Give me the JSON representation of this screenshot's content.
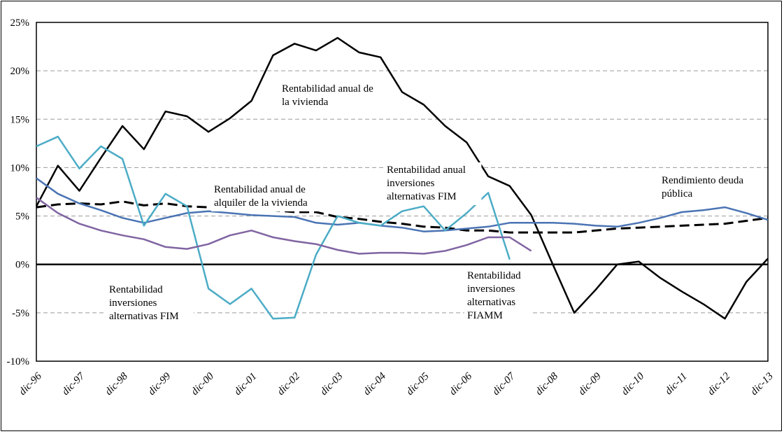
{
  "chart_data": {
    "type": "line",
    "title": "",
    "xlabel": "",
    "ylabel": "",
    "ylim": [
      -10,
      25
    ],
    "y_ticks": [
      "25%",
      "20%",
      "15%",
      "10%",
      "5%",
      "0%",
      "-5%",
      "-10%"
    ],
    "x_labels": [
      "dic-96",
      "dic-97",
      "dic-98",
      "dic-99",
      "dic-00",
      "dic-01",
      "dic-02",
      "dic-03",
      "dic-04",
      "dic-05",
      "dic-06",
      "dic-07",
      "dic-08",
      "dic-09",
      "dic-10",
      "dic-11",
      "dic-12",
      "dic-13"
    ],
    "points_per_year": 2,
    "series": [
      {
        "name": "Rentabilidad anual de la vivienda",
        "color": "#000000",
        "style": "solid",
        "start": 0,
        "values": [
          6.0,
          10.2,
          7.6,
          11.0,
          14.3,
          11.9,
          15.8,
          15.3,
          13.7,
          15.1,
          16.9,
          21.6,
          22.8,
          22.1,
          23.4,
          21.9,
          21.4,
          17.8,
          16.5,
          14.3,
          12.6,
          9.1,
          8.1,
          5.1,
          0.0,
          -5.0,
          -2.6,
          0.0,
          0.3,
          -1.4,
          -2.8,
          -4.1,
          -5.6,
          -1.8,
          0.6
        ]
      },
      {
        "name": "Rentabilidad anual de alquiler de la vivienda",
        "color": "#000000",
        "style": "dashed",
        "start": 0,
        "values": [
          5.9,
          6.2,
          6.3,
          6.2,
          6.5,
          6.1,
          6.3,
          6.0,
          5.9,
          5.9,
          5.6,
          5.6,
          5.4,
          5.4,
          4.9,
          4.7,
          4.4,
          4.2,
          3.9,
          3.8,
          3.5,
          3.5,
          3.3,
          3.3,
          3.3,
          3.3,
          3.5,
          3.7,
          3.8,
          3.9,
          4.0,
          4.1,
          4.2,
          4.5,
          4.8
        ]
      },
      {
        "name": "Rendimiento deuda pública",
        "color": "#4a74b4",
        "style": "solid",
        "start": 0,
        "values": [
          8.9,
          7.3,
          6.3,
          5.6,
          4.8,
          4.3,
          4.8,
          5.3,
          5.5,
          5.3,
          5.1,
          5.0,
          4.9,
          4.3,
          4.1,
          4.3,
          4.0,
          3.8,
          3.4,
          3.5,
          3.7,
          3.9,
          4.3,
          4.3,
          4.3,
          4.2,
          4.0,
          3.9,
          4.3,
          4.8,
          5.4,
          5.6,
          5.9,
          5.3,
          4.6
        ]
      },
      {
        "name": "Rentabilidad inversiones alternativas FIM",
        "color": "#4bacc6",
        "style": "solid",
        "start": 0,
        "values": [
          12.2,
          13.2,
          9.9,
          12.2,
          10.9,
          4.0,
          7.3,
          6.0,
          -2.5,
          -4.1,
          -2.5,
          -5.6,
          -5.5,
          1.0,
          5.0,
          4.3,
          4.0,
          5.5,
          6.0,
          3.5,
          5.3,
          7.4,
          0.5
        ]
      },
      {
        "name": "Rentabilidad inversiones alternativas FIAMM",
        "color": "#8064a2",
        "style": "solid",
        "start": 0,
        "values": [
          6.9,
          5.3,
          4.2,
          3.5,
          3.0,
          2.6,
          1.8,
          1.6,
          2.1,
          3.0,
          3.5,
          2.8,
          2.4,
          2.1,
          1.5,
          1.1,
          1.2,
          1.2,
          1.1,
          1.4,
          2.0,
          2.8,
          2.8,
          1.4
        ]
      }
    ],
    "annotations": {
      "vivienda": [
        "Rentabilidad anual de",
        "la vivienda"
      ],
      "alquiler": [
        "Rentabilidad anual de",
        "alquiler de la vivienda"
      ],
      "fim_upper": [
        "Rentabilidad anual",
        "inversiones",
        "alternativas FIM"
      ],
      "deuda": [
        "Rendimiento deuda",
        "pública"
      ],
      "fim_lower": [
        "Rentabilidad",
        "inversiones",
        "alternativas FIM"
      ],
      "fiamm": [
        "Rentabilidad",
        "inversiones",
        "alternativas",
        "FIAMM"
      ]
    },
    "grid": true
  }
}
